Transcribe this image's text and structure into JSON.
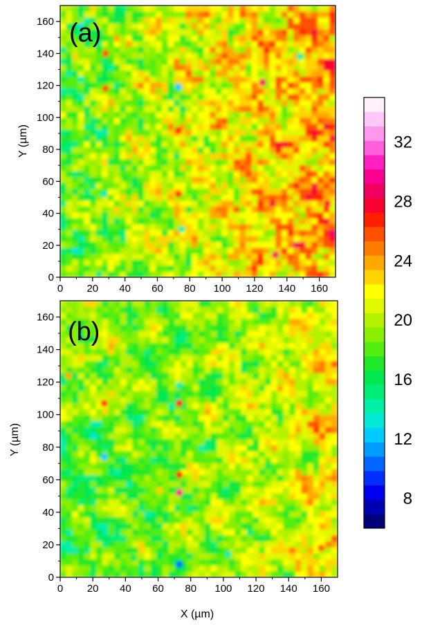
{
  "chart_data": [
    {
      "type": "heatmap",
      "panel_label": "(a)",
      "xlabel": "",
      "ylabel": "Y (µm)",
      "xlim": [
        0,
        170
      ],
      "ylim": [
        0,
        170
      ],
      "x_ticks": [
        0,
        20,
        40,
        60,
        80,
        100,
        120,
        140,
        160
      ],
      "y_ticks": [
        0,
        20,
        40,
        60,
        80,
        100,
        120,
        140,
        160
      ],
      "background_level": 21.5,
      "trend": "values increase toward the right side (about 20 on the left to 24 on the right)",
      "hotspots": [
        {
          "x": 73,
          "y": 119,
          "value": 12
        },
        {
          "x": 27,
          "y": 52,
          "value": 14
        },
        {
          "x": 73,
          "y": 52,
          "value": 27
        },
        {
          "x": 73,
          "y": 92,
          "value": 27
        },
        {
          "x": 28,
          "y": 118,
          "value": 26
        },
        {
          "x": 28,
          "y": 140,
          "value": 26
        },
        {
          "x": 125,
          "y": 122,
          "value": 29
        },
        {
          "x": 148,
          "y": 138,
          "value": 14
        },
        {
          "x": 133,
          "y": 14,
          "value": 29
        },
        {
          "x": 165,
          "y": 46,
          "value": 28
        },
        {
          "x": 40,
          "y": 62,
          "value": 17
        },
        {
          "x": 75,
          "y": 30,
          "value": 14
        }
      ]
    },
    {
      "type": "heatmap",
      "panel_label": "(b)",
      "xlabel": "X (µm)",
      "ylabel": "Y (µm)",
      "xlim": [
        0,
        170
      ],
      "ylim": [
        0,
        170
      ],
      "x_ticks": [
        0,
        20,
        40,
        60,
        80,
        100,
        120,
        140,
        160
      ],
      "y_ticks": [
        0,
        20,
        40,
        60,
        80,
        100,
        120,
        140,
        160
      ],
      "background_level": 19.5,
      "trend": "mostly 18-21, with warmer regions near the right edge and the upper-left area",
      "hotspots": [
        {
          "x": 27,
          "y": 107,
          "value": 27
        },
        {
          "x": 73,
          "y": 107,
          "value": 28
        },
        {
          "x": 73,
          "y": 52,
          "value": 30
        },
        {
          "x": 73,
          "y": 63,
          "value": 27
        },
        {
          "x": 73,
          "y": 118,
          "value": 14
        },
        {
          "x": 73,
          "y": 8,
          "value": 10
        },
        {
          "x": 27,
          "y": 74,
          "value": 12
        },
        {
          "x": 103,
          "y": 14,
          "value": 14
        },
        {
          "x": 5,
          "y": 124,
          "value": 24
        },
        {
          "x": 160,
          "y": 18,
          "value": 26
        },
        {
          "x": 150,
          "y": 55,
          "value": 25
        },
        {
          "x": 45,
          "y": 12,
          "value": 16
        }
      ]
    }
  ],
  "colorbar": {
    "min": 6,
    "max": 35,
    "step": 1,
    "tick_labels": [
      "8",
      "12",
      "16",
      "20",
      "24",
      "28",
      "32"
    ],
    "tick_values": [
      8,
      12,
      16,
      20,
      24,
      28,
      32
    ],
    "colors": [
      "#00007a",
      "#0000b4",
      "#0000ee",
      "#0030ff",
      "#0066ff",
      "#009cff",
      "#00ccff",
      "#00e8d8",
      "#00f0a8",
      "#00ee78",
      "#00e850",
      "#20e828",
      "#55ee10",
      "#88f000",
      "#b4f200",
      "#e0f800",
      "#ffff00",
      "#ffd400",
      "#ffa800",
      "#ff7c00",
      "#ff5000",
      "#ff2000",
      "#f80030",
      "#f00060",
      "#f80090",
      "#ff20c0",
      "#ff60dc",
      "#ff98ec",
      "#ffc8f6",
      "#fff0fc"
    ]
  }
}
